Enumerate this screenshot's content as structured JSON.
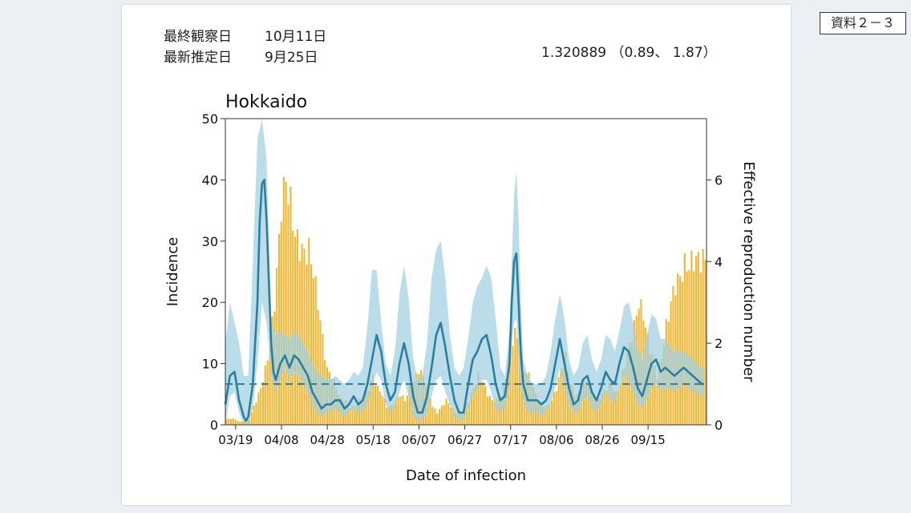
{
  "header": {
    "tag": "資料２－３",
    "last_observed_label": "最終観察日",
    "last_observed_value": "10月11日",
    "latest_estimate_label": "最新推定日",
    "latest_estimate_value": "9月25日",
    "estimate_text": "1.320889 （0.89、 1.87）"
  },
  "colors": {
    "bars": "#f4b52c",
    "line": "#2a7fa0",
    "band": "#9fd0e0",
    "reference": "#2a7fa0"
  },
  "chart_data": {
    "type": "bar",
    "title": "Hokkaido",
    "xlabel": "Date of infection",
    "ylabel": "Incidence",
    "y2label": "Effective reproduction number",
    "ylim": [
      0,
      50
    ],
    "y2lim": [
      0,
      7.5
    ],
    "yticks": [
      0,
      10,
      20,
      30,
      40,
      50
    ],
    "y2ticks": [
      0,
      2,
      4,
      6
    ],
    "xlim": [
      0,
      209
    ],
    "xticks": [
      "03/19",
      "04/08",
      "04/28",
      "05/18",
      "06/07",
      "06/27",
      "07/17",
      "08/06",
      "08/26",
      "09/15"
    ],
    "xtick_positions": [
      4,
      24,
      44,
      64,
      84,
      104,
      124,
      144,
      164,
      184
    ],
    "reference_line_y2": 1,
    "incidence_anchors": [
      [
        0,
        1
      ],
      [
        3,
        1
      ],
      [
        6,
        0.5
      ],
      [
        10,
        1
      ],
      [
        13,
        4
      ],
      [
        15,
        6
      ],
      [
        17,
        9
      ],
      [
        19,
        13
      ],
      [
        21,
        20
      ],
      [
        23,
        30
      ],
      [
        24,
        36
      ],
      [
        26,
        40
      ],
      [
        28,
        36
      ],
      [
        30,
        31
      ],
      [
        32,
        29
      ],
      [
        34,
        28
      ],
      [
        36,
        28.5
      ],
      [
        38,
        25
      ],
      [
        40,
        20
      ],
      [
        42,
        14
      ],
      [
        44,
        9
      ],
      [
        46,
        8
      ],
      [
        48,
        6
      ],
      [
        50,
        4
      ],
      [
        52,
        4
      ],
      [
        54,
        3
      ],
      [
        56,
        3
      ],
      [
        58,
        4
      ],
      [
        60,
        5
      ],
      [
        62,
        6
      ],
      [
        64,
        8
      ],
      [
        66,
        6
      ],
      [
        68,
        5
      ],
      [
        70,
        3
      ],
      [
        72,
        3
      ],
      [
        74,
        4
      ],
      [
        76,
        5
      ],
      [
        78,
        4
      ],
      [
        80,
        6
      ],
      [
        82,
        7
      ],
      [
        84,
        9
      ],
      [
        86,
        8
      ],
      [
        88,
        6
      ],
      [
        90,
        3
      ],
      [
        92,
        2
      ],
      [
        94,
        3
      ],
      [
        96,
        4
      ],
      [
        98,
        3
      ],
      [
        100,
        2
      ],
      [
        102,
        2
      ],
      [
        104,
        3
      ],
      [
        106,
        4
      ],
      [
        108,
        6
      ],
      [
        110,
        8
      ],
      [
        112,
        7
      ],
      [
        114,
        5
      ],
      [
        116,
        4
      ],
      [
        118,
        4
      ],
      [
        120,
        5
      ],
      [
        122,
        8
      ],
      [
        124,
        13
      ],
      [
        126,
        15
      ],
      [
        128,
        13
      ],
      [
        130,
        9
      ],
      [
        132,
        8
      ],
      [
        134,
        6
      ],
      [
        136,
        4
      ],
      [
        138,
        3
      ],
      [
        140,
        3
      ],
      [
        142,
        4
      ],
      [
        144,
        6
      ],
      [
        146,
        9
      ],
      [
        148,
        11
      ],
      [
        150,
        7
      ],
      [
        152,
        5
      ],
      [
        154,
        5
      ],
      [
        156,
        7
      ],
      [
        158,
        7
      ],
      [
        160,
        5
      ],
      [
        162,
        4
      ],
      [
        164,
        5
      ],
      [
        166,
        6
      ],
      [
        168,
        7
      ],
      [
        170,
        5
      ],
      [
        172,
        7
      ],
      [
        174,
        10
      ],
      [
        176,
        13
      ],
      [
        178,
        16
      ],
      [
        180,
        20
      ],
      [
        182,
        18
      ],
      [
        184,
        14
      ],
      [
        186,
        11
      ],
      [
        188,
        8
      ],
      [
        190,
        11
      ],
      [
        192,
        16
      ],
      [
        194,
        20
      ],
      [
        196,
        23
      ],
      [
        198,
        24
      ],
      [
        200,
        26
      ],
      [
        202,
        26
      ],
      [
        204,
        27
      ],
      [
        206,
        27
      ],
      [
        208,
        27
      ]
    ],
    "rt_anchors": [
      [
        0,
        0.5
      ],
      [
        2,
        1.2
      ],
      [
        4,
        1.3
      ],
      [
        6,
        0.6
      ],
      [
        8,
        0.2
      ],
      [
        9,
        0.1
      ],
      [
        10,
        0.2
      ],
      [
        12,
        1
      ],
      [
        14,
        3
      ],
      [
        15,
        5
      ],
      [
        16,
        5.9
      ],
      [
        17,
        6
      ],
      [
        18,
        5
      ],
      [
        19,
        3.5
      ],
      [
        20,
        2
      ],
      [
        21,
        1.3
      ],
      [
        22,
        1.1
      ],
      [
        24,
        1.5
      ],
      [
        26,
        1.7
      ],
      [
        28,
        1.4
      ],
      [
        30,
        1.7
      ],
      [
        32,
        1.6
      ],
      [
        34,
        1.4
      ],
      [
        36,
        1.2
      ],
      [
        38,
        0.8
      ],
      [
        40,
        0.6
      ],
      [
        42,
        0.4
      ],
      [
        44,
        0.5
      ],
      [
        46,
        0.5
      ],
      [
        48,
        0.6
      ],
      [
        50,
        0.6
      ],
      [
        52,
        0.4
      ],
      [
        54,
        0.5
      ],
      [
        56,
        0.7
      ],
      [
        58,
        0.5
      ],
      [
        60,
        0.6
      ],
      [
        62,
        1
      ],
      [
        64,
        1.6
      ],
      [
        66,
        2.2
      ],
      [
        68,
        1.8
      ],
      [
        70,
        1
      ],
      [
        72,
        0.6
      ],
      [
        74,
        0.8
      ],
      [
        76,
        1.5
      ],
      [
        78,
        2
      ],
      [
        80,
        1.5
      ],
      [
        82,
        0.7
      ],
      [
        84,
        0.3
      ],
      [
        86,
        0.3
      ],
      [
        88,
        0.7
      ],
      [
        90,
        1.4
      ],
      [
        92,
        2.2
      ],
      [
        94,
        2.5
      ],
      [
        96,
        1.9
      ],
      [
        98,
        1.2
      ],
      [
        100,
        0.6
      ],
      [
        102,
        0.3
      ],
      [
        104,
        0.3
      ],
      [
        106,
        1
      ],
      [
        108,
        1.6
      ],
      [
        110,
        1.8
      ],
      [
        112,
        2.1
      ],
      [
        114,
        2.2
      ],
      [
        116,
        1.7
      ],
      [
        118,
        1
      ],
      [
        120,
        0.6
      ],
      [
        122,
        0.7
      ],
      [
        124,
        1.5
      ],
      [
        125,
        3
      ],
      [
        126,
        4
      ],
      [
        127,
        4.2
      ],
      [
        128,
        3
      ],
      [
        129,
        1.7
      ],
      [
        130,
        1
      ],
      [
        132,
        0.6
      ],
      [
        134,
        0.6
      ],
      [
        136,
        0.6
      ],
      [
        138,
        0.5
      ],
      [
        140,
        0.6
      ],
      [
        142,
        0.9
      ],
      [
        144,
        1.5
      ],
      [
        146,
        2.1
      ],
      [
        148,
        1.5
      ],
      [
        150,
        0.9
      ],
      [
        152,
        0.5
      ],
      [
        154,
        0.6
      ],
      [
        156,
        1.1
      ],
      [
        158,
        1.2
      ],
      [
        160,
        0.8
      ],
      [
        162,
        0.6
      ],
      [
        164,
        0.9
      ],
      [
        166,
        1.3
      ],
      [
        168,
        1.1
      ],
      [
        170,
        1
      ],
      [
        172,
        1.5
      ],
      [
        174,
        1.9
      ],
      [
        176,
        1.8
      ],
      [
        178,
        1.4
      ],
      [
        180,
        0.9
      ],
      [
        182,
        0.7
      ],
      [
        184,
        1.1
      ],
      [
        186,
        1.5
      ],
      [
        188,
        1.6
      ],
      [
        190,
        1.3
      ],
      [
        192,
        1.4
      ],
      [
        194,
        1.3
      ],
      [
        196,
        1.2
      ],
      [
        198,
        1.3
      ],
      [
        200,
        1.4
      ],
      [
        202,
        1.3
      ],
      [
        204,
        1.2
      ],
      [
        206,
        1.1
      ],
      [
        208,
        1.0
      ]
    ],
    "band_upper_anchors": [
      [
        0,
        2
      ],
      [
        2,
        3
      ],
      [
        4,
        2.5
      ],
      [
        6,
        2
      ],
      [
        8,
        1.2
      ],
      [
        10,
        1.2
      ],
      [
        12,
        4
      ],
      [
        14,
        7
      ],
      [
        16,
        7.5
      ],
      [
        18,
        6.5
      ],
      [
        19,
        4.5
      ],
      [
        20,
        2.5
      ],
      [
        22,
        2.2
      ],
      [
        24,
        2.3
      ],
      [
        26,
        2.2
      ],
      [
        28,
        2.1
      ],
      [
        30,
        2.3
      ],
      [
        32,
        2.2
      ],
      [
        34,
        2
      ],
      [
        36,
        1.8
      ],
      [
        38,
        1.5
      ],
      [
        40,
        1.3
      ],
      [
        42,
        1.2
      ],
      [
        44,
        1.1
      ],
      [
        46,
        1.1
      ],
      [
        48,
        1.2
      ],
      [
        50,
        1.1
      ],
      [
        52,
        1
      ],
      [
        54,
        1.1
      ],
      [
        56,
        1.3
      ],
      [
        58,
        1.2
      ],
      [
        60,
        1.4
      ],
      [
        62,
        2.4
      ],
      [
        64,
        3.8
      ],
      [
        66,
        3.8
      ],
      [
        68,
        2.5
      ],
      [
        70,
        1.5
      ],
      [
        72,
        1.2
      ],
      [
        74,
        1.8
      ],
      [
        76,
        3.2
      ],
      [
        78,
        3.9
      ],
      [
        80,
        3.1
      ],
      [
        82,
        1.6
      ],
      [
        84,
        1.1
      ],
      [
        86,
        1.2
      ],
      [
        88,
        2
      ],
      [
        90,
        3.6
      ],
      [
        92,
        4.3
      ],
      [
        94,
        4.5
      ],
      [
        96,
        3.6
      ],
      [
        98,
        2.2
      ],
      [
        100,
        1.4
      ],
      [
        102,
        1.2
      ],
      [
        104,
        1.4
      ],
      [
        106,
        2.1
      ],
      [
        108,
        3
      ],
      [
        110,
        3.4
      ],
      [
        112,
        3.6
      ],
      [
        114,
        3.9
      ],
      [
        116,
        3.6
      ],
      [
        118,
        2.6
      ],
      [
        120,
        1.4
      ],
      [
        122,
        1.2
      ],
      [
        124,
        2.3
      ],
      [
        125,
        4
      ],
      [
        126,
        5.6
      ],
      [
        127,
        6.2
      ],
      [
        128,
        5
      ],
      [
        129,
        3
      ],
      [
        130,
        1.6
      ],
      [
        132,
        1.2
      ],
      [
        134,
        1
      ],
      [
        136,
        1
      ],
      [
        138,
        1
      ],
      [
        140,
        1.2
      ],
      [
        142,
        1.8
      ],
      [
        144,
        2.6
      ],
      [
        146,
        3.2
      ],
      [
        148,
        2.6
      ],
      [
        150,
        1.6
      ],
      [
        152,
        1.2
      ],
      [
        154,
        1.4
      ],
      [
        156,
        2
      ],
      [
        158,
        2.2
      ],
      [
        160,
        1.6
      ],
      [
        162,
        1.3
      ],
      [
        164,
        1.6
      ],
      [
        166,
        2.2
      ],
      [
        168,
        2.1
      ],
      [
        170,
        1.8
      ],
      [
        172,
        2.3
      ],
      [
        174,
        2.9
      ],
      [
        176,
        3
      ],
      [
        178,
        2.5
      ],
      [
        180,
        1.9
      ],
      [
        182,
        1.6
      ],
      [
        184,
        2.2
      ],
      [
        186,
        2.7
      ],
      [
        188,
        2.6
      ],
      [
        190,
        2.1
      ],
      [
        192,
        2.1
      ],
      [
        194,
        1.9
      ],
      [
        196,
        1.8
      ],
      [
        198,
        1.8
      ],
      [
        200,
        1.8
      ],
      [
        202,
        1.7
      ],
      [
        204,
        1.6
      ],
      [
        206,
        1.5
      ],
      [
        208,
        1.4
      ]
    ],
    "band_lower_anchors": [
      [
        0,
        0
      ],
      [
        2,
        0.7
      ],
      [
        4,
        0.8
      ],
      [
        6,
        0.3
      ],
      [
        8,
        0
      ],
      [
        10,
        0
      ],
      [
        12,
        0.4
      ],
      [
        14,
        1.5
      ],
      [
        16,
        3
      ],
      [
        18,
        2.5
      ],
      [
        19,
        1.9
      ],
      [
        20,
        1.2
      ],
      [
        22,
        0.8
      ],
      [
        24,
        1.1
      ],
      [
        26,
        1.4
      ],
      [
        28,
        1.1
      ],
      [
        30,
        1.3
      ],
      [
        32,
        1.2
      ],
      [
        34,
        1
      ],
      [
        36,
        0.8
      ],
      [
        38,
        0.5
      ],
      [
        40,
        0.3
      ],
      [
        42,
        0.2
      ],
      [
        44,
        0.3
      ],
      [
        46,
        0.3
      ],
      [
        48,
        0.4
      ],
      [
        50,
        0.3
      ],
      [
        52,
        0.2
      ],
      [
        54,
        0.3
      ],
      [
        56,
        0.4
      ],
      [
        58,
        0.3
      ],
      [
        60,
        0.3
      ],
      [
        62,
        0.5
      ],
      [
        64,
        0.9
      ],
      [
        66,
        1.3
      ],
      [
        68,
        1.1
      ],
      [
        70,
        0.5
      ],
      [
        72,
        0.3
      ],
      [
        74,
        0.4
      ],
      [
        76,
        0.8
      ],
      [
        78,
        1.1
      ],
      [
        80,
        0.7
      ],
      [
        82,
        0.2
      ],
      [
        84,
        0.1
      ],
      [
        86,
        0.1
      ],
      [
        88,
        0.3
      ],
      [
        90,
        0.7
      ],
      [
        92,
        1.1
      ],
      [
        94,
        1.2
      ],
      [
        96,
        0.8
      ],
      [
        98,
        0.5
      ],
      [
        100,
        0.2
      ],
      [
        102,
        0.1
      ],
      [
        104,
        0.1
      ],
      [
        106,
        0.4
      ],
      [
        108,
        0.7
      ],
      [
        110,
        0.9
      ],
      [
        112,
        1.1
      ],
      [
        114,
        1.1
      ],
      [
        116,
        0.8
      ],
      [
        118,
        0.4
      ],
      [
        120,
        0.3
      ],
      [
        122,
        0.4
      ],
      [
        124,
        0.9
      ],
      [
        125,
        2
      ],
      [
        126,
        2.5
      ],
      [
        127,
        2.6
      ],
      [
        128,
        1.7
      ],
      [
        129,
        0.9
      ],
      [
        130,
        0.6
      ],
      [
        132,
        0.3
      ],
      [
        134,
        0.3
      ],
      [
        136,
        0.3
      ],
      [
        138,
        0.2
      ],
      [
        140,
        0.3
      ],
      [
        142,
        0.5
      ],
      [
        144,
        0.9
      ],
      [
        146,
        1.4
      ],
      [
        148,
        0.9
      ],
      [
        150,
        0.5
      ],
      [
        152,
        0.3
      ],
      [
        154,
        0.3
      ],
      [
        156,
        0.6
      ],
      [
        158,
        0.7
      ],
      [
        160,
        0.4
      ],
      [
        162,
        0.3
      ],
      [
        164,
        0.5
      ],
      [
        166,
        0.8
      ],
      [
        168,
        0.6
      ],
      [
        170,
        0.5
      ],
      [
        172,
        0.9
      ],
      [
        174,
        1.2
      ],
      [
        176,
        1.1
      ],
      [
        178,
        0.8
      ],
      [
        180,
        0.5
      ],
      [
        182,
        0.4
      ],
      [
        184,
        0.6
      ],
      [
        186,
        0.9
      ],
      [
        188,
        1
      ],
      [
        190,
        0.8
      ],
      [
        192,
        0.9
      ],
      [
        194,
        0.9
      ],
      [
        196,
        0.8
      ],
      [
        198,
        0.9
      ],
      [
        200,
        1
      ],
      [
        202,
        0.9
      ],
      [
        204,
        0.8
      ],
      [
        206,
        0.8
      ],
      [
        208,
        0.7
      ]
    ]
  }
}
